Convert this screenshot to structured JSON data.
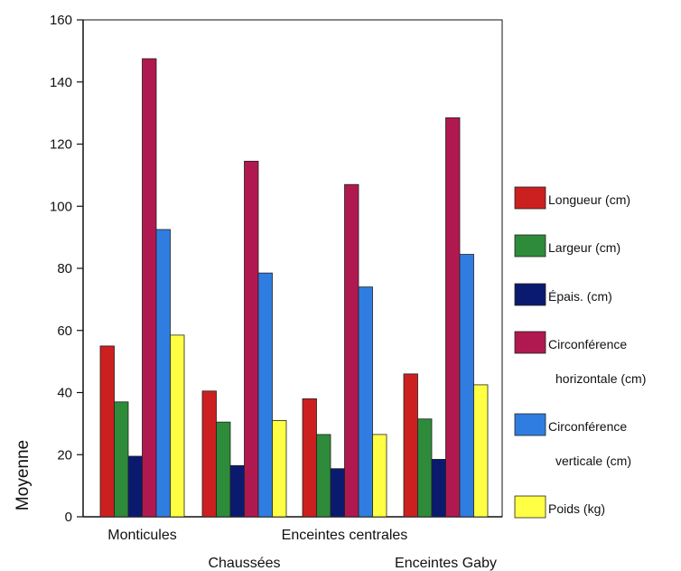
{
  "chart_data": {
    "type": "bar",
    "title": "",
    "xlabel": "",
    "ylabel": "Moyenne",
    "ylim": [
      0,
      160
    ],
    "yticks": [
      0,
      20,
      40,
      60,
      80,
      100,
      120,
      140,
      160
    ],
    "grid": false,
    "legend_position": "right",
    "categories": [
      "Monticules",
      "Chaussées",
      "Enceintes centrales",
      "Enceintes Gaby"
    ],
    "series": [
      {
        "name": "Longueur (cm)",
        "legend_lines": [
          "Longueur (cm)"
        ],
        "color": "#cc2020",
        "values": [
          55,
          40.5,
          38,
          46
        ]
      },
      {
        "name": "Largeur (cm)",
        "legend_lines": [
          "Largeur (cm)"
        ],
        "color": "#2e8b3a",
        "values": [
          37,
          30.5,
          26.5,
          31.5
        ]
      },
      {
        "name": "Épais. (cm)",
        "legend_lines": [
          "Épais. (cm)"
        ],
        "color": "#0a1a6e",
        "values": [
          19.5,
          16.5,
          15.5,
          18.5
        ]
      },
      {
        "name": "Circonférence horizontale (cm)",
        "legend_lines": [
          "Circonférence",
          "horizontale (cm)"
        ],
        "color": "#b0194f",
        "values": [
          147.5,
          114.5,
          107,
          128.5
        ]
      },
      {
        "name": "Circonférence verticale (cm)",
        "legend_lines": [
          "Circonférence",
          "verticale (cm)"
        ],
        "color": "#2f7de0",
        "values": [
          92.5,
          78.5,
          74,
          84.5
        ]
      },
      {
        "name": "Poids (kg)",
        "legend_lines": [
          "Poids (kg)"
        ],
        "color": "#ffff44",
        "values": [
          58.5,
          31,
          26.5,
          42.5
        ]
      }
    ]
  }
}
